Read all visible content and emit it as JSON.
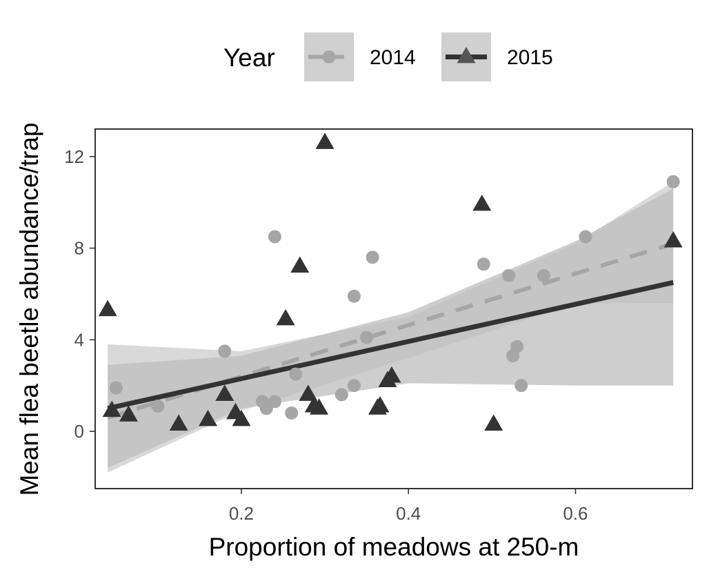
{
  "chart_data": {
    "type": "scatter",
    "xlabel": "Proportion of meadows at 250-m",
    "ylabel": "Mean flea beetle abundance/trap",
    "xlim": [
      0.025,
      0.74
    ],
    "ylim": [
      -2.5,
      13.2
    ],
    "x_ticks": [
      0.2,
      0.4,
      0.6
    ],
    "x_tick_labels": [
      "0.2",
      "0.4",
      "0.6"
    ],
    "y_ticks": [
      0,
      4,
      8,
      12
    ],
    "y_tick_labels": [
      "0",
      "4",
      "8",
      "12"
    ],
    "grid": false,
    "legend": {
      "title": "Year",
      "position": "top"
    },
    "series": [
      {
        "name": "2014",
        "marker": "circle",
        "line": "dashed",
        "color": "#a6a6a6",
        "points": [
          [
            0.05,
            1.9
          ],
          [
            0.1,
            1.1
          ],
          [
            0.18,
            3.5
          ],
          [
            0.225,
            1.3
          ],
          [
            0.23,
            1.0
          ],
          [
            0.24,
            1.3
          ],
          [
            0.24,
            8.5
          ],
          [
            0.26,
            0.8
          ],
          [
            0.265,
            2.5
          ],
          [
            0.32,
            1.6
          ],
          [
            0.335,
            2.0
          ],
          [
            0.335,
            5.9
          ],
          [
            0.35,
            4.1
          ],
          [
            0.357,
            7.6
          ],
          [
            0.49,
            7.3
          ],
          [
            0.52,
            6.8
          ],
          [
            0.525,
            3.3
          ],
          [
            0.53,
            3.7
          ],
          [
            0.535,
            2.0
          ],
          [
            0.562,
            6.8
          ],
          [
            0.612,
            8.5
          ],
          [
            0.717,
            10.9
          ]
        ],
        "fit": {
          "x": [
            0.04,
            0.717
          ],
          "y": [
            0.6,
            8.2
          ]
        },
        "ci": {
          "x": [
            0.04,
            0.2,
            0.4,
            0.6,
            0.717
          ],
          "lower": [
            -1.8,
            0.9,
            3.2,
            5.6,
            5.6
          ],
          "upper": [
            3.8,
            3.5,
            5.0,
            8.2,
            10.9
          ]
        }
      },
      {
        "name": "2015",
        "marker": "triangle",
        "line": "solid",
        "color": "#333333",
        "points": [
          [
            0.04,
            5.3
          ],
          [
            0.045,
            0.9
          ],
          [
            0.065,
            0.7
          ],
          [
            0.125,
            0.3
          ],
          [
            0.16,
            0.5
          ],
          [
            0.18,
            1.6
          ],
          [
            0.193,
            0.8
          ],
          [
            0.2,
            0.5
          ],
          [
            0.253,
            4.9
          ],
          [
            0.27,
            7.2
          ],
          [
            0.28,
            1.6
          ],
          [
            0.287,
            1.1
          ],
          [
            0.293,
            1.0
          ],
          [
            0.3,
            12.6
          ],
          [
            0.363,
            1.0
          ],
          [
            0.366,
            1.1
          ],
          [
            0.375,
            2.2
          ],
          [
            0.38,
            2.4
          ],
          [
            0.488,
            9.9
          ],
          [
            0.502,
            0.3
          ],
          [
            0.717,
            8.3
          ]
        ],
        "fit": {
          "x": [
            0.04,
            0.717
          ],
          "y": [
            1.0,
            6.5
          ]
        },
        "ci": {
          "x": [
            0.04,
            0.2,
            0.4,
            0.6,
            0.717
          ],
          "lower": [
            -1.6,
            1.0,
            2.1,
            2.0,
            2.0
          ],
          "upper": [
            2.9,
            3.3,
            5.2,
            8.3,
            10.6
          ]
        }
      }
    ],
    "ci_fill_colors": [
      "#d9d9d9",
      "#bdbdbd"
    ]
  }
}
